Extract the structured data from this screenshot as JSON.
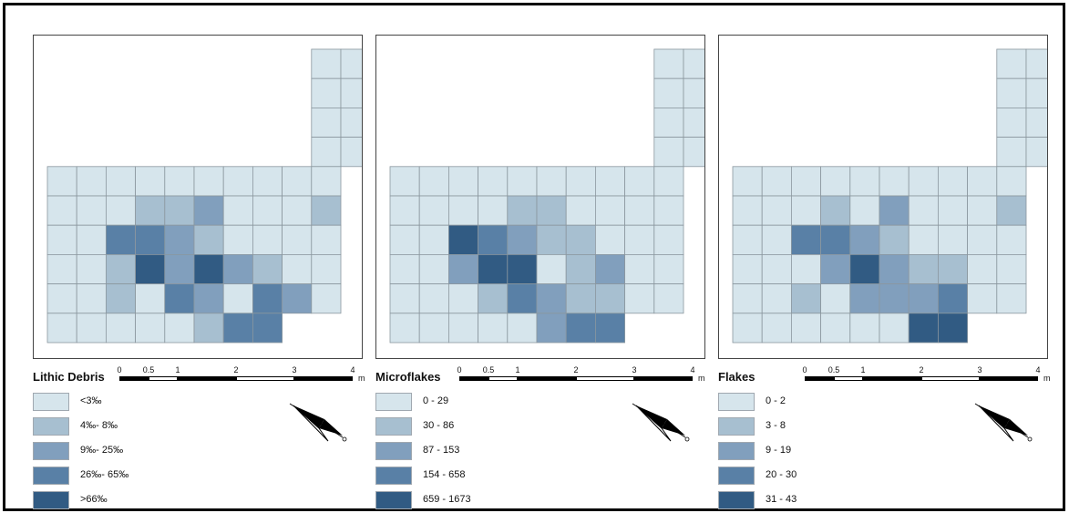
{
  "colors": [
    "#d6e5ec",
    "#a7bfd0",
    "#819fbd",
    "#5980a6",
    "#315b83"
  ],
  "scalebar": {
    "ticks": [
      "0",
      "0.5",
      "1",
      "2",
      "3",
      "4"
    ],
    "unit": "m"
  },
  "panels": [
    {
      "title": "Lithic Debris",
      "legend": [
        "<3‰",
        "4‰- 8‰",
        "9‰- 25‰",
        "26‰- 65‰",
        ">66‰"
      ],
      "grid": [
        "         00",
        "         00",
        "         00",
        "         00",
        "0000000000 ",
        "0001120001 ",
        "0033210000 ",
        "0014242100 ",
        "0010320320 ",
        "00000133   "
      ]
    },
    {
      "title": "Microflakes",
      "legend": [
        "0 - 29",
        "30 - 86",
        "87 - 153",
        "154 - 658",
        "659 - 1673"
      ],
      "grid": [
        "         00",
        "         00",
        "         00",
        "         00",
        "0000000000 ",
        "0000110000 ",
        "0043211000 ",
        "0024401200 ",
        "0001321100 ",
        "00000233   "
      ]
    },
    {
      "title": "Flakes",
      "legend": [
        "0 - 2",
        "3 - 8",
        "9 - 19",
        "20 - 30",
        "31 - 43"
      ],
      "grid": [
        "         00",
        "         00",
        "         00",
        "         00",
        "0000000000 ",
        "0001020001 ",
        "0033210000 ",
        "0002421100 ",
        "0010222300 ",
        "00000044   "
      ]
    }
  ]
}
